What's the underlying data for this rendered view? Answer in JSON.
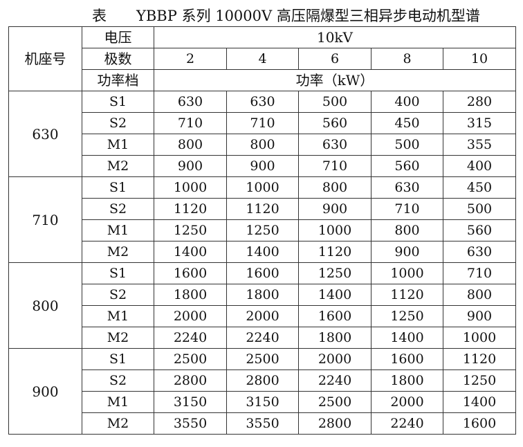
{
  "title": {
    "prefix": "表",
    "text": "YBBP 系列 10000V 高压隔爆型三相异步电动机型谱"
  },
  "header": {
    "seat_label": "机座号",
    "voltage_label": "电压",
    "voltage_value": "10kV",
    "poles_label": "极数",
    "poles": [
      "2",
      "4",
      "6",
      "8",
      "10"
    ],
    "power_class_label": "功率档",
    "power_unit_label": "功率（kW）"
  },
  "groups": [
    {
      "seat": "630",
      "rows": [
        {
          "cls": "S1",
          "values": [
            "630",
            "630",
            "500",
            "400",
            "280"
          ]
        },
        {
          "cls": "S2",
          "values": [
            "710",
            "710",
            "560",
            "450",
            "315"
          ]
        },
        {
          "cls": "M1",
          "values": [
            "800",
            "800",
            "630",
            "500",
            "355"
          ]
        },
        {
          "cls": "M2",
          "values": [
            "900",
            "900",
            "710",
            "560",
            "400"
          ]
        }
      ]
    },
    {
      "seat": "710",
      "rows": [
        {
          "cls": "S1",
          "values": [
            "1000",
            "1000",
            "800",
            "630",
            "450"
          ]
        },
        {
          "cls": "S2",
          "values": [
            "1120",
            "1120",
            "900",
            "710",
            "500"
          ]
        },
        {
          "cls": "M1",
          "values": [
            "1250",
            "1250",
            "1000",
            "800",
            "560"
          ]
        },
        {
          "cls": "M2",
          "values": [
            "1400",
            "1400",
            "1120",
            "900",
            "630"
          ]
        }
      ]
    },
    {
      "seat": "800",
      "rows": [
        {
          "cls": "S1",
          "values": [
            "1600",
            "1600",
            "1250",
            "1000",
            "710"
          ]
        },
        {
          "cls": "S2",
          "values": [
            "1800",
            "1800",
            "1400",
            "1120",
            "800"
          ]
        },
        {
          "cls": "M1",
          "values": [
            "2000",
            "2000",
            "1600",
            "1250",
            "900"
          ]
        },
        {
          "cls": "M2",
          "values": [
            "2240",
            "2240",
            "1800",
            "1400",
            "1000"
          ]
        }
      ]
    },
    {
      "seat": "900",
      "rows": [
        {
          "cls": "S1",
          "values": [
            "2500",
            "2500",
            "2000",
            "1600",
            "1120"
          ]
        },
        {
          "cls": "S2",
          "values": [
            "2800",
            "2800",
            "2240",
            "1800",
            "1250"
          ]
        },
        {
          "cls": "M1",
          "values": [
            "3150",
            "3150",
            "2500",
            "2000",
            "1400"
          ]
        },
        {
          "cls": "M2",
          "values": [
            "3550",
            "3550",
            "2800",
            "2240",
            "1600"
          ]
        }
      ]
    }
  ]
}
